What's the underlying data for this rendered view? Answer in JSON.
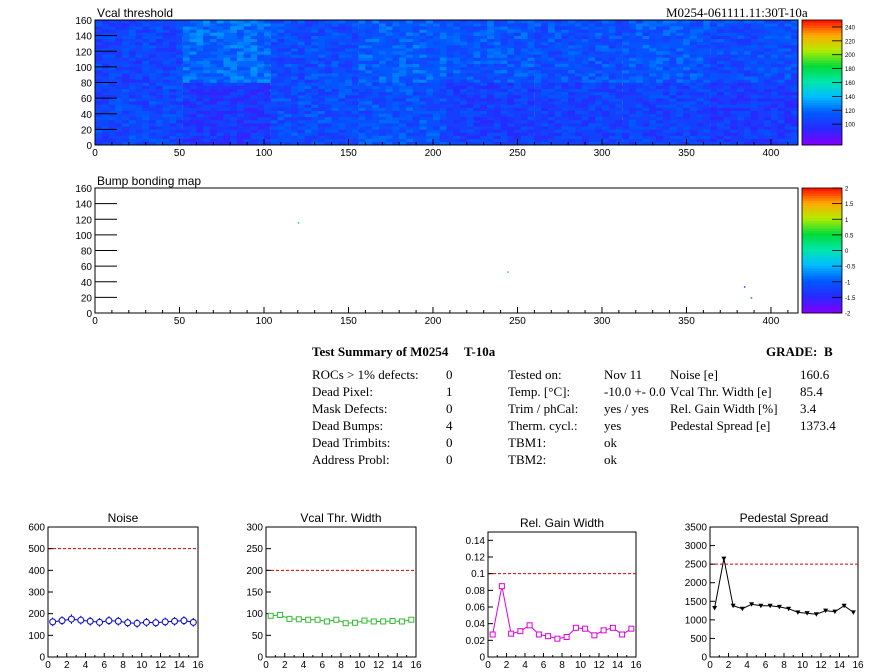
{
  "header": {
    "id": "M0254-061111.11:30T-10a"
  },
  "chart_data": [
    {
      "name": "vcal",
      "type": "heatmap",
      "title": "Vcal threshold",
      "xlim": [
        0,
        416
      ],
      "ylim": [
        0,
        160
      ],
      "x_ticks": [
        0,
        50,
        100,
        150,
        200,
        250,
        300,
        350,
        400
      ],
      "y_ticks": [
        0,
        20,
        40,
        60,
        80,
        100,
        120,
        140,
        160
      ],
      "color_scale": {
        "min": 70,
        "max": 250,
        "ticks": [
          100,
          120,
          140,
          160,
          180,
          200,
          220,
          240
        ]
      },
      "roc_grid": {
        "cols": 8,
        "rows": 2,
        "col_width": 52,
        "row_height": 80
      },
      "roc_levels": [
        [
          105,
          118,
          108,
          115,
          112,
          110,
          112,
          108
        ],
        [
          106,
          98,
          108,
          110,
          102,
          104,
          104,
          100
        ]
      ]
    },
    {
      "name": "bump",
      "type": "heatmap",
      "title": "Bump bonding map",
      "xlim": [
        0,
        416
      ],
      "ylim": [
        0,
        160
      ],
      "x_ticks": [
        0,
        50,
        100,
        150,
        200,
        250,
        300,
        350,
        400
      ],
      "y_ticks": [
        0,
        20,
        40,
        60,
        80,
        100,
        120,
        140,
        160
      ],
      "color_scale": {
        "min": -2,
        "max": 2,
        "ticks": [
          -2,
          -1.5,
          -1,
          -0.5,
          0,
          0.5,
          1,
          1.5,
          2
        ]
      },
      "points": [
        {
          "x": 120,
          "y": 115,
          "value": -0.5
        },
        {
          "x": 244,
          "y": 52,
          "value": 0.2
        },
        {
          "x": 384,
          "y": 33,
          "value": -1.2
        },
        {
          "x": 388,
          "y": 19,
          "value": -0.8
        }
      ]
    },
    {
      "name": "noise",
      "type": "line",
      "title": "Noise",
      "color": "#0000cc",
      "marker": "circle",
      "xlim": [
        0,
        16
      ],
      "ylim": [
        0,
        600
      ],
      "x_ticks": [
        0,
        2,
        4,
        6,
        8,
        10,
        12,
        14,
        16
      ],
      "y_ticks": [
        0,
        100,
        200,
        300,
        400,
        500,
        600
      ],
      "threshold": 500,
      "x": [
        0.5,
        1.5,
        2.5,
        3.5,
        4.5,
        5.5,
        6.5,
        7.5,
        8.5,
        9.5,
        10.5,
        11.5,
        12.5,
        13.5,
        14.5,
        15.5
      ],
      "y": [
        162,
        168,
        175,
        170,
        165,
        160,
        168,
        165,
        158,
        155,
        160,
        158,
        162,
        165,
        168,
        160
      ],
      "errors": [
        20,
        20,
        22,
        20,
        20,
        20,
        20,
        20,
        20,
        20,
        20,
        20,
        20,
        20,
        20,
        20
      ]
    },
    {
      "name": "vcalwidth",
      "type": "line",
      "title": "Vcal Thr. Width",
      "color": "#33bb33",
      "marker": "square",
      "xlim": [
        0,
        16
      ],
      "ylim": [
        0,
        300
      ],
      "x_ticks": [
        0,
        2,
        4,
        6,
        8,
        10,
        12,
        14,
        16
      ],
      "y_ticks": [
        0,
        50,
        100,
        150,
        200,
        250,
        300
      ],
      "threshold": 200,
      "x": [
        0.5,
        1.5,
        2.5,
        3.5,
        4.5,
        5.5,
        6.5,
        7.5,
        8.5,
        9.5,
        10.5,
        11.5,
        12.5,
        13.5,
        14.5,
        15.5
      ],
      "y": [
        95,
        97,
        88,
        87,
        86,
        86,
        82,
        86,
        78,
        79,
        84,
        82,
        82,
        83,
        82,
        86
      ]
    },
    {
      "name": "gain",
      "type": "line",
      "title": "Rel. Gain Width",
      "color": "#dd00dd",
      "marker": "square",
      "xlim": [
        0,
        16
      ],
      "ylim": [
        0,
        0.15
      ],
      "x_ticks": [
        0,
        2,
        4,
        6,
        8,
        10,
        12,
        14,
        16
      ],
      "y_ticks": [
        0,
        0.02,
        0.04,
        0.06,
        0.08,
        0.1,
        0.12,
        0.14
      ],
      "y_tick_labels": [
        "0",
        "0.02",
        "0.04",
        "0.06",
        "0.08",
        "0.1",
        "0.12",
        "0.14"
      ],
      "threshold": 0.1,
      "x": [
        0.5,
        1.5,
        2.5,
        3.5,
        4.5,
        5.5,
        6.5,
        7.5,
        8.5,
        9.5,
        10.5,
        11.5,
        12.5,
        13.5,
        14.5,
        15.5
      ],
      "y": [
        0.027,
        0.085,
        0.028,
        0.031,
        0.038,
        0.027,
        0.025,
        0.022,
        0.024,
        0.035,
        0.034,
        0.026,
        0.032,
        0.035,
        0.027,
        0.034
      ]
    },
    {
      "name": "pedestal",
      "type": "line",
      "title": "Pedestal Spread",
      "color": "#000000",
      "marker": "triangle",
      "xlim": [
        0,
        16
      ],
      "ylim": [
        0,
        3500
      ],
      "x_ticks": [
        0,
        2,
        4,
        6,
        8,
        10,
        12,
        14,
        16
      ],
      "y_ticks": [
        0,
        500,
        1000,
        1500,
        2000,
        2500,
        3000,
        3500
      ],
      "threshold": 2500,
      "x": [
        0.5,
        1.5,
        2.5,
        3.5,
        4.5,
        5.5,
        6.5,
        7.5,
        8.5,
        9.5,
        10.5,
        11.5,
        12.5,
        13.5,
        14.5,
        15.5
      ],
      "y": [
        1320,
        2650,
        1380,
        1300,
        1420,
        1380,
        1380,
        1350,
        1300,
        1200,
        1180,
        1150,
        1250,
        1220,
        1380,
        1200
      ]
    }
  ],
  "summary": {
    "title": "Test Summary of M0254",
    "temp_code": "T-10a",
    "grade_label": "GRADE:",
    "grade": "B",
    "defects": [
      {
        "label": "ROCs > 1% defects:",
        "value": "0"
      },
      {
        "label": "Dead Pixel:",
        "value": "1"
      },
      {
        "label": "Mask Defects:",
        "value": "0"
      },
      {
        "label": "Dead Bumps:",
        "value": "4"
      },
      {
        "label": "Dead Trimbits:",
        "value": "0"
      },
      {
        "label": "Address Probl:",
        "value": "0"
      }
    ],
    "conditions": [
      {
        "label": "Tested on:",
        "value": "Nov 11"
      },
      {
        "label": "Temp. [°C]:",
        "value": "-10.0 +- 0.0"
      },
      {
        "label": "Trim / phCal:",
        "value": "yes / yes"
      },
      {
        "label": "Therm. cycl.:",
        "value": "yes"
      },
      {
        "label": "TBM1:",
        "value": "ok"
      },
      {
        "label": "TBM2:",
        "value": "ok"
      }
    ],
    "metrics": [
      {
        "label": "Noise [e]",
        "value": "160.6"
      },
      {
        "label": "Vcal Thr. Width [e]",
        "value": "85.4"
      },
      {
        "label": "Rel. Gain Width [%]",
        "value": "3.4"
      },
      {
        "label": "Pedestal Spread [e]",
        "value": "1373.4"
      }
    ]
  }
}
